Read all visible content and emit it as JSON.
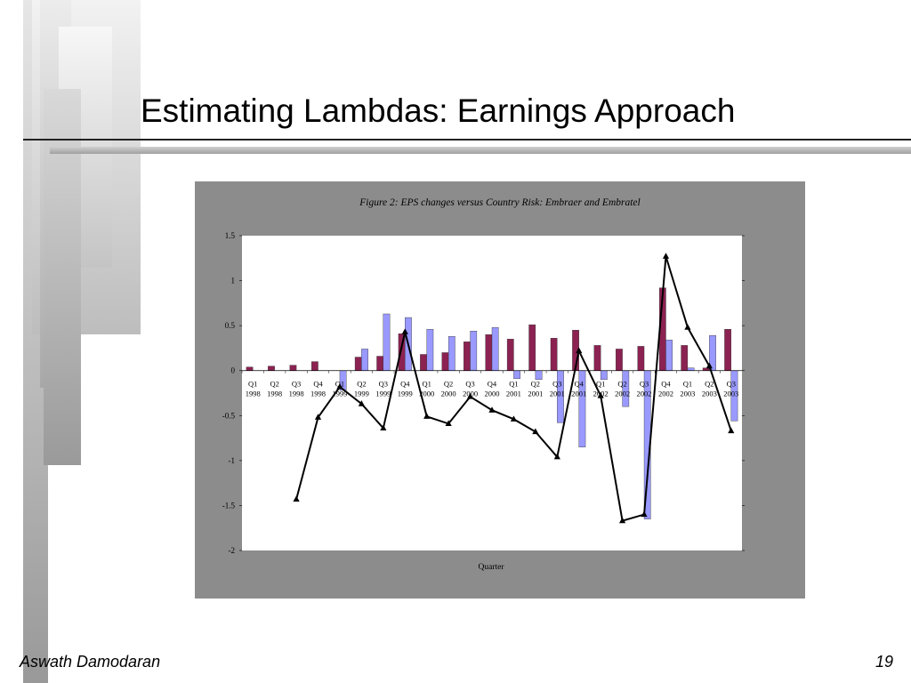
{
  "slide": {
    "title": "Estimating Lambdas: Earnings Approach",
    "author": "Aswath Damodaran",
    "page_number": "19"
  },
  "colors": {
    "panel": "#8c8c8c",
    "plot_bg": "#ffffff",
    "embraer_bar": "#8b2252",
    "embratel_bar": "#9999ff",
    "risk_line": "#000000"
  },
  "chart_data": {
    "type": "bar",
    "title": "Figure 2: EPS changes versus Country Risk: Embraer and Embratel",
    "xlabel": "Quarter",
    "ylabel": "",
    "ylim": [
      -2,
      1.5
    ],
    "yticks": [
      1.5,
      1,
      0.5,
      0,
      -0.5,
      -1,
      -1.5,
      -2
    ],
    "categories": [
      [
        "Q1",
        "1998"
      ],
      [
        "Q2",
        "1998"
      ],
      [
        "Q3",
        "1998"
      ],
      [
        "Q4",
        "1998"
      ],
      [
        "Q1",
        "1999"
      ],
      [
        "Q2",
        "1999"
      ],
      [
        "Q3",
        "1999"
      ],
      [
        "Q4",
        "1999"
      ],
      [
        "Q1",
        "2000"
      ],
      [
        "Q2",
        "2000"
      ],
      [
        "Q3",
        "2000"
      ],
      [
        "Q4",
        "2000"
      ],
      [
        "Q1",
        "2001"
      ],
      [
        "Q2",
        "2001"
      ],
      [
        "Q3",
        "2001"
      ],
      [
        "Q4",
        "2001"
      ],
      [
        "Q1",
        "2002"
      ],
      [
        "Q2",
        "2002"
      ],
      [
        "Q3",
        "2002"
      ],
      [
        "Q4",
        "2002"
      ],
      [
        "Q1",
        "2003"
      ],
      [
        "Q2",
        "2003"
      ],
      [
        "Q3",
        "2003"
      ]
    ],
    "series": [
      {
        "kind": "bar",
        "values": [
          0.04,
          0.05,
          0.06,
          0.1,
          0,
          0.15,
          0.16,
          0.41,
          0.18,
          0.2,
          0.32,
          0.4,
          0.35,
          0.51,
          0.36,
          0.45,
          0.28,
          0.24,
          0.27,
          0.92,
          0.28,
          0.03,
          0.46
        ]
      },
      {
        "kind": "bar",
        "values": [
          0,
          0,
          0,
          0,
          -0.22,
          0.24,
          0.63,
          0.59,
          0.46,
          0.38,
          0.44,
          0.48,
          -0.09,
          -0.1,
          -0.58,
          -0.85,
          -0.1,
          -0.4,
          -1.65,
          0.34,
          0.03,
          0.39,
          -0.56
        ]
      },
      {
        "kind": "line",
        "values": [
          null,
          null,
          -1.43,
          -0.52,
          -0.18,
          -0.37,
          -0.64,
          0.43,
          -0.51,
          -0.59,
          -0.29,
          -0.44,
          -0.54,
          -0.68,
          -0.96,
          0.22,
          -0.28,
          -1.67,
          -1.6,
          1.27,
          0.48,
          0.05,
          -0.67
        ]
      }
    ]
  }
}
